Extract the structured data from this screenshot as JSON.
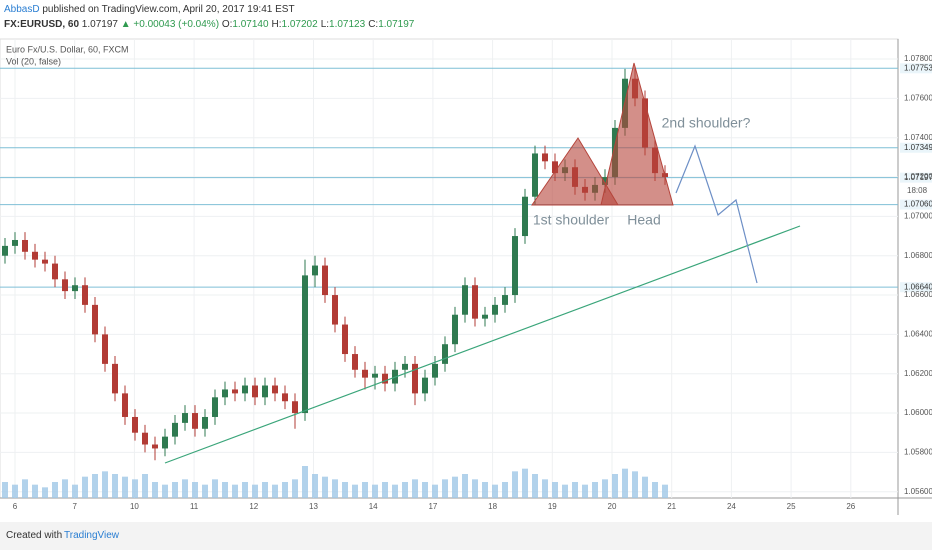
{
  "header": {
    "author": "AbbasD",
    "published": "published on TradingView.com, April 20, 2017 19:41 EST",
    "symbol": "FX:EURUSD, 60",
    "price": "1.07197",
    "change": "▲ +0.00043 (+0.04%)",
    "ohlc": [
      {
        "label": "O:",
        "value": "1.07140"
      },
      {
        "label": "H:",
        "value": "1.07202"
      },
      {
        "label": "L:",
        "value": "1.07123"
      },
      {
        "label": "C:",
        "value": "1.07197"
      }
    ]
  },
  "chart_data": {
    "type": "candlestick",
    "title": "Euro Fx/U.S. Dollar, 60, FXCM",
    "indicator": "Vol (20, false)",
    "categories": [
      "6",
      "7",
      "10",
      "11",
      "12",
      "13",
      "14",
      "17",
      "18",
      "19",
      "20",
      "21",
      "24",
      "25",
      "26"
    ],
    "ylim": [
      1.05568,
      1.07902
    ],
    "yticks": [
      {
        "value": 1.078,
        "label": "1.07800"
      },
      {
        "value": 1.076,
        "label": "1.07600"
      },
      {
        "value": 1.074,
        "label": "1.07400"
      },
      {
        "value": 1.072,
        "label": "1.07200"
      },
      {
        "value": 1.07,
        "label": "1.07000"
      },
      {
        "value": 1.068,
        "label": "1.06800"
      },
      {
        "value": 1.066,
        "label": "1.06600"
      },
      {
        "value": 1.064,
        "label": "1.06400"
      },
      {
        "value": 1.062,
        "label": "1.06200"
      },
      {
        "value": 1.06,
        "label": "1.06000"
      },
      {
        "value": 1.058,
        "label": "1.05800"
      },
      {
        "value": 1.056,
        "label": "1.05600"
      }
    ],
    "grid": true,
    "up_color": "#2f7a50",
    "down_color": "#b23b35",
    "volume_color": "#9fc7e6",
    "level_color": "#7fbfd6",
    "levels": [
      {
        "value": 1.07753,
        "label": "1.07753"
      },
      {
        "value": 1.07349,
        "label": "1.07349"
      },
      {
        "value": 1.07197,
        "label": "1.07197"
      },
      {
        "value": 1.0706,
        "label": "1.07060"
      },
      {
        "value": 1.0664,
        "label": "1.06640"
      }
    ],
    "countdown": "18:08",
    "open": [
      1.068,
      1.0685,
      1.0688,
      1.0682,
      1.0678,
      1.0676,
      1.0668,
      1.0662,
      1.0665,
      1.0655,
      1.064,
      1.0625,
      1.061,
      1.0598,
      1.059,
      1.0584,
      1.0582,
      1.0588,
      1.0595,
      1.06,
      1.0592,
      1.0598,
      1.0608,
      1.0612,
      1.061,
      1.0614,
      1.0608,
      1.0614,
      1.061,
      1.0606,
      1.06,
      1.067,
      1.0675,
      1.066,
      1.0645,
      1.063,
      1.0622,
      1.0618,
      1.062,
      1.0615,
      1.0622,
      1.0625,
      1.061,
      1.0618,
      1.0625,
      1.0635,
      1.065,
      1.0665,
      1.0648,
      1.065,
      1.0655,
      1.066,
      1.069,
      1.071,
      1.0732,
      1.0728,
      1.0722,
      1.0725,
      1.0715,
      1.0712,
      1.0716,
      1.072,
      1.0745,
      1.077,
      1.076,
      1.0735,
      1.0722
    ],
    "high": [
      1.0689,
      1.0692,
      1.0692,
      1.0686,
      1.0682,
      1.068,
      1.0672,
      1.0669,
      1.0669,
      1.0659,
      1.0644,
      1.0629,
      1.0614,
      1.0602,
      1.0594,
      1.0588,
      1.0592,
      1.0599,
      1.0604,
      1.0604,
      1.0602,
      1.0612,
      1.0616,
      1.0616,
      1.0618,
      1.0618,
      1.0618,
      1.0618,
      1.0614,
      1.061,
      1.0678,
      1.068,
      1.0679,
      1.0664,
      1.0649,
      1.0634,
      1.0626,
      1.0624,
      1.0624,
      1.0626,
      1.0629,
      1.0629,
      1.0622,
      1.0629,
      1.0639,
      1.0654,
      1.0669,
      1.0669,
      1.0654,
      1.0659,
      1.0664,
      1.0694,
      1.0714,
      1.0736,
      1.0736,
      1.0732,
      1.0729,
      1.0729,
      1.0719,
      1.072,
      1.0724,
      1.0749,
      1.0775,
      1.0775,
      1.0764,
      1.0739,
      1.0726
    ],
    "low": [
      1.0676,
      1.0681,
      1.0678,
      1.0674,
      1.0672,
      1.0664,
      1.0658,
      1.0658,
      1.0651,
      1.0636,
      1.0621,
      1.0606,
      1.0594,
      1.0586,
      1.058,
      1.0576,
      1.0578,
      1.0584,
      1.0591,
      1.0588,
      1.0588,
      1.0594,
      1.0604,
      1.0606,
      1.0606,
      1.0604,
      1.0604,
      1.0606,
      1.0602,
      1.0592,
      1.0596,
      1.0664,
      1.0656,
      1.0641,
      1.0626,
      1.0618,
      1.0612,
      1.0612,
      1.0611,
      1.0611,
      1.0618,
      1.0604,
      1.0606,
      1.0614,
      1.0621,
      1.0631,
      1.0646,
      1.0644,
      1.0644,
      1.0646,
      1.0651,
      1.0656,
      1.0686,
      1.0706,
      1.0724,
      1.0718,
      1.0718,
      1.0711,
      1.0708,
      1.0708,
      1.0712,
      1.0716,
      1.0741,
      1.0756,
      1.0731,
      1.0718,
      1.0716
    ],
    "close": [
      1.0685,
      1.0688,
      1.0682,
      1.0678,
      1.0676,
      1.0668,
      1.0662,
      1.0665,
      1.0655,
      1.064,
      1.0625,
      1.061,
      1.0598,
      1.059,
      1.0584,
      1.0582,
      1.0588,
      1.0595,
      1.06,
      1.0592,
      1.0598,
      1.0608,
      1.0612,
      1.061,
      1.0614,
      1.0608,
      1.0614,
      1.061,
      1.0606,
      1.06,
      1.067,
      1.0675,
      1.066,
      1.0645,
      1.063,
      1.0622,
      1.0618,
      1.062,
      1.0615,
      1.0622,
      1.0625,
      1.061,
      1.0618,
      1.0625,
      1.0635,
      1.065,
      1.0665,
      1.0648,
      1.065,
      1.0655,
      1.066,
      1.069,
      1.071,
      1.0732,
      1.0728,
      1.0722,
      1.0725,
      1.0715,
      1.0712,
      1.0716,
      1.072,
      1.0745,
      1.077,
      1.076,
      1.0735,
      1.0722,
      1.072
    ],
    "volume": [
      6,
      5,
      7,
      5,
      4,
      6,
      7,
      5,
      8,
      9,
      10,
      9,
      8,
      7,
      9,
      6,
      5,
      6,
      7,
      6,
      5,
      7,
      6,
      5,
      6,
      5,
      6,
      5,
      6,
      7,
      12,
      9,
      8,
      7,
      6,
      5,
      6,
      5,
      6,
      5,
      6,
      7,
      6,
      5,
      7,
      8,
      9,
      7,
      6,
      5,
      6,
      10,
      11,
      9,
      7,
      6,
      5,
      6,
      5,
      6,
      7,
      9,
      11,
      10,
      8,
      6,
      5
    ],
    "annotations": [
      "2nd shoulder?",
      "1st shoulder",
      "Head"
    ]
  },
  "footer": {
    "created": "Created with",
    "brand": "TradingView"
  }
}
